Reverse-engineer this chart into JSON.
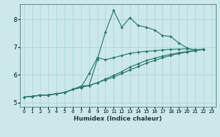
{
  "xlabel": "Humidex (Indice chaleur)",
  "ylabel": "",
  "bg_color": "#cce8ea",
  "grid_color": "#b0d8dc",
  "line_color": "#2e7b6e",
  "marker": "D",
  "markersize": 2.0,
  "linewidth": 0.9,
  "xlim": [
    -0.5,
    23.5
  ],
  "ylim": [
    4.85,
    8.55
  ],
  "yticks": [
    5,
    6,
    7,
    8
  ],
  "xticks": [
    0,
    1,
    2,
    3,
    4,
    5,
    6,
    7,
    8,
    9,
    10,
    11,
    12,
    13,
    14,
    15,
    16,
    17,
    18,
    19,
    20,
    21,
    22,
    23
  ],
  "series": [
    [
      [
        0,
        5.2
      ],
      [
        1,
        5.23
      ],
      [
        2,
        5.27
      ],
      [
        3,
        5.28
      ],
      [
        4,
        5.32
      ],
      [
        5,
        5.37
      ],
      [
        6,
        5.48
      ],
      [
        7,
        5.6
      ],
      [
        8,
        5.62
      ],
      [
        9,
        6.55
      ],
      [
        10,
        7.55
      ],
      [
        11,
        8.32
      ],
      [
        12,
        7.72
      ],
      [
        13,
        8.06
      ],
      [
        14,
        7.78
      ],
      [
        15,
        7.72
      ],
      [
        16,
        7.62
      ],
      [
        17,
        7.42
      ],
      [
        18,
        7.38
      ],
      [
        19,
        7.15
      ],
      [
        20,
        6.97
      ],
      [
        21,
        6.88
      ],
      [
        22,
        6.92
      ]
    ],
    [
      [
        0,
        5.2
      ],
      [
        1,
        5.23
      ],
      [
        2,
        5.27
      ],
      [
        3,
        5.28
      ],
      [
        4,
        5.32
      ],
      [
        5,
        5.37
      ],
      [
        6,
        5.48
      ],
      [
        7,
        5.55
      ],
      [
        8,
        6.05
      ],
      [
        9,
        6.62
      ],
      [
        10,
        6.55
      ],
      [
        11,
        6.62
      ],
      [
        12,
        6.7
      ],
      [
        13,
        6.78
      ],
      [
        14,
        6.82
      ],
      [
        15,
        6.85
      ],
      [
        16,
        6.87
      ],
      [
        17,
        6.9
      ],
      [
        18,
        6.92
      ],
      [
        19,
        6.93
      ],
      [
        20,
        6.94
      ],
      [
        21,
        6.91
      ],
      [
        22,
        6.92
      ]
    ],
    [
      [
        0,
        5.2
      ],
      [
        1,
        5.23
      ],
      [
        2,
        5.27
      ],
      [
        3,
        5.28
      ],
      [
        4,
        5.32
      ],
      [
        5,
        5.37
      ],
      [
        6,
        5.48
      ],
      [
        7,
        5.55
      ],
      [
        8,
        5.62
      ],
      [
        9,
        5.72
      ],
      [
        10,
        5.85
      ],
      [
        11,
        5.98
      ],
      [
        12,
        6.12
      ],
      [
        13,
        6.28
      ],
      [
        14,
        6.4
      ],
      [
        15,
        6.52
      ],
      [
        16,
        6.6
      ],
      [
        17,
        6.68
      ],
      [
        18,
        6.74
      ],
      [
        19,
        6.8
      ],
      [
        20,
        6.84
      ],
      [
        21,
        6.88
      ],
      [
        22,
        6.92
      ]
    ],
    [
      [
        0,
        5.2
      ],
      [
        1,
        5.23
      ],
      [
        2,
        5.27
      ],
      [
        3,
        5.28
      ],
      [
        4,
        5.32
      ],
      [
        5,
        5.37
      ],
      [
        6,
        5.48
      ],
      [
        7,
        5.55
      ],
      [
        8,
        5.62
      ],
      [
        9,
        5.72
      ],
      [
        10,
        5.82
      ],
      [
        11,
        5.92
      ],
      [
        12,
        6.05
      ],
      [
        13,
        6.18
      ],
      [
        14,
        6.3
      ],
      [
        15,
        6.42
      ],
      [
        16,
        6.52
      ],
      [
        17,
        6.62
      ],
      [
        18,
        6.7
      ],
      [
        19,
        6.77
      ],
      [
        20,
        6.82
      ],
      [
        21,
        6.87
      ],
      [
        22,
        6.92
      ]
    ]
  ]
}
